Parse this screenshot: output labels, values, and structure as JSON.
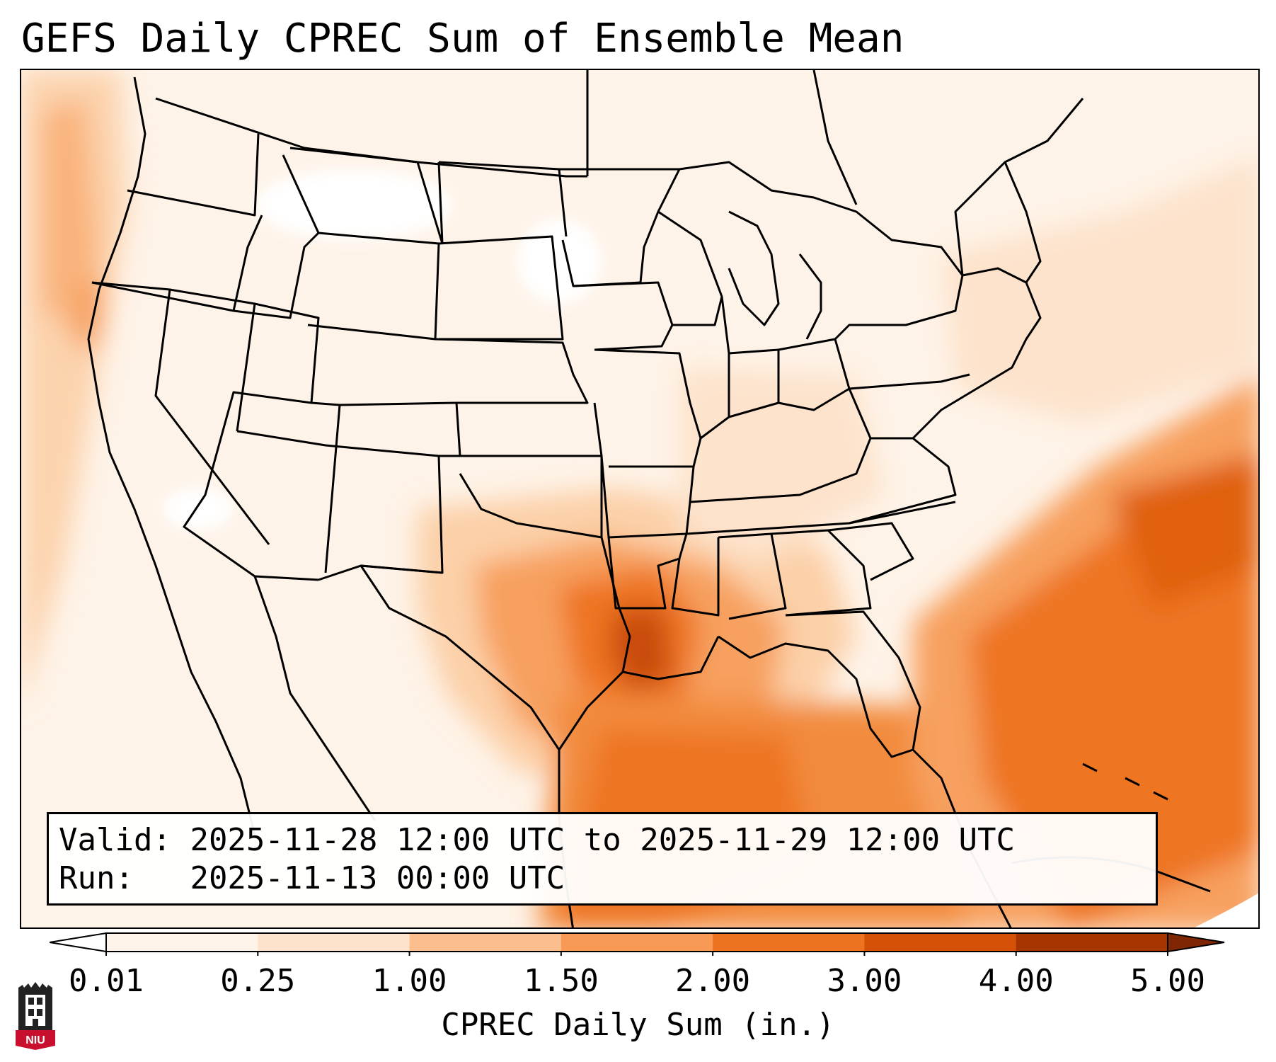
{
  "title": "GEFS Daily CPREC Sum of Ensemble Mean",
  "info": {
    "valid_label": "Valid:",
    "valid_value": "2025-11-28 12:00 UTC to 2025-11-29 12:00 UTC",
    "run_label": "Run:",
    "run_value": "2025-11-13 00:00 UTC"
  },
  "colorbar": {
    "label": "CPREC Daily Sum (in.)",
    "ticks": [
      "0.01",
      "0.25",
      "1.00",
      "1.50",
      "2.00",
      "3.00",
      "4.00",
      "5.00"
    ],
    "colors": [
      "#fef3e8",
      "#fde3cc",
      "#fbbf8f",
      "#f79a55",
      "#ee7321",
      "#d55108",
      "#a53602"
    ],
    "under_color": "#ffffff",
    "over_color": "#7f2704"
  },
  "logo": {
    "text": "NIU",
    "icon": "niu-logo-icon"
  },
  "map": {
    "region": "CONUS",
    "basemap": "state-boundaries"
  }
}
